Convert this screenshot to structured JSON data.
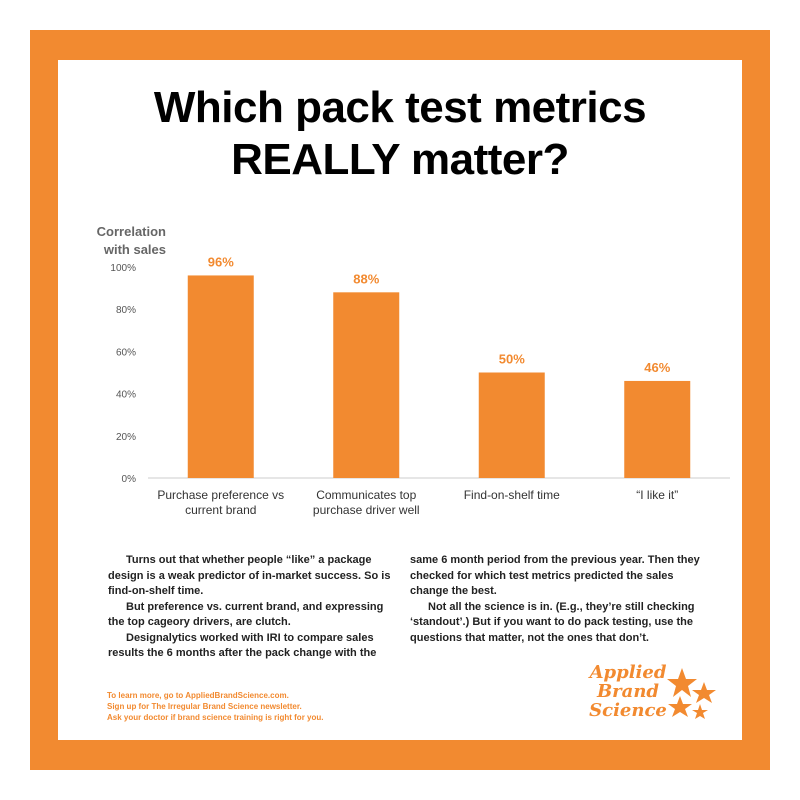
{
  "title": {
    "line1": "Which pack test metrics",
    "line2": "REALLY matter?"
  },
  "colors": {
    "accent": "#f28a30",
    "frame": "#f28a30",
    "text": "#222222"
  },
  "chart_data": {
    "type": "bar",
    "ylabel": [
      "Correlation",
      "with sales"
    ],
    "categories": [
      [
        "Purchase preference vs",
        "current brand"
      ],
      [
        "Communicates top",
        "purchase driver well"
      ],
      [
        "Find-on-shelf time"
      ],
      [
        "“I like it”"
      ]
    ],
    "values": [
      96,
      88,
      50,
      46
    ],
    "data_labels": [
      "96%",
      "88%",
      "50%",
      "46%"
    ],
    "yticks": [
      "0%",
      "20%",
      "40%",
      "60%",
      "80%",
      "100%"
    ],
    "ylim": [
      0,
      100
    ],
    "grid": false
  },
  "body": {
    "col1": [
      "Turns out that whether people “like” a package design is a weak predictor of in-market success. So is find-on-shelf time.",
      "But preference vs. current brand, and expressing the top cageory drivers, are clutch.",
      "Designalytics worked with IRI to compare sales results the 6 months after the pack change with the"
    ],
    "col2": [
      "same 6 month period from the previous year. Then they checked for which test metrics predicted the sales change the best.",
      "Not all the science is in. (E.g., they’re still checking ‘standout’.) But if you want to do pack testing, use the questions that matter, not the ones that don’t."
    ]
  },
  "footer": {
    "line1": "To learn more, go to AppliedBrandScience.com.",
    "line2": "Sign up for The Irregular Brand Science newsletter.",
    "line3": "Ask your doctor if brand science training is right for you."
  },
  "logo": {
    "line1": "Applied",
    "line2": "Brand",
    "line3": "Science",
    "icon": "stars-icon"
  }
}
